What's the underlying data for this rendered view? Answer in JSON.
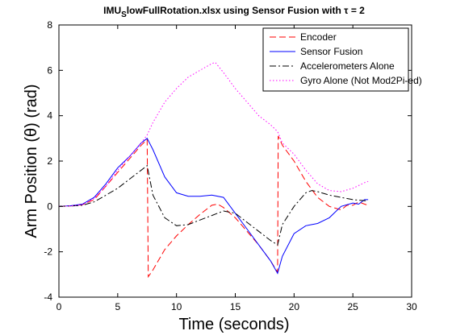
{
  "chart_data": {
    "type": "line",
    "title_main": "IMU",
    "title_sub": "S",
    "title_rest": "lowFullRotation.xlsx using Sensor Fusion with τ = 2",
    "xlabel": "Time (seconds)",
    "ylabel": "Arm Position (θ) (rad)",
    "xlim": [
      0,
      30
    ],
    "ylim": [
      -4,
      8
    ],
    "xticks": [
      0,
      5,
      10,
      15,
      20,
      25,
      30
    ],
    "yticks": [
      -4,
      -2,
      0,
      2,
      4,
      6,
      8
    ],
    "grid": false,
    "legend_position": "top-right",
    "series": [
      {
        "name": "Encoder",
        "color": "#ff0000",
        "dash": "8,4",
        "points": [
          [
            0,
            0
          ],
          [
            1,
            0.02
          ],
          [
            2,
            0.08
          ],
          [
            3,
            0.3
          ],
          [
            4,
            0.9
          ],
          [
            5,
            1.5
          ],
          [
            6,
            2.1
          ],
          [
            7,
            2.7
          ],
          [
            7.5,
            2.95
          ],
          [
            7.6,
            -3.1
          ],
          [
            8,
            -2.8
          ],
          [
            9,
            -1.9
          ],
          [
            10,
            -1.3
          ],
          [
            11,
            -0.8
          ],
          [
            12,
            -0.35
          ],
          [
            13,
            0.05
          ],
          [
            13.5,
            0.1
          ],
          [
            14,
            -0.05
          ],
          [
            15,
            -0.5
          ],
          [
            16,
            -1.1
          ],
          [
            17,
            -1.7
          ],
          [
            18,
            -2.4
          ],
          [
            18.6,
            -2.9
          ],
          [
            18.65,
            3.1
          ],
          [
            19,
            2.7
          ],
          [
            20,
            2.0
          ],
          [
            21,
            1.1
          ],
          [
            22,
            0.4
          ],
          [
            23,
            0.0
          ],
          [
            24,
            -0.15
          ],
          [
            24.5,
            0.05
          ],
          [
            25,
            0.05
          ],
          [
            25.5,
            0.2
          ],
          [
            26,
            0.1
          ],
          [
            26.3,
            0.05
          ]
        ]
      },
      {
        "name": "Sensor Fusion",
        "color": "#0000ff",
        "dash": "",
        "points": [
          [
            0,
            0
          ],
          [
            1,
            0.03
          ],
          [
            2,
            0.1
          ],
          [
            3,
            0.4
          ],
          [
            4,
            1.0
          ],
          [
            5,
            1.7
          ],
          [
            6,
            2.2
          ],
          [
            7,
            2.8
          ],
          [
            7.5,
            3.0
          ],
          [
            8,
            2.5
          ],
          [
            9,
            1.3
          ],
          [
            10,
            0.6
          ],
          [
            11,
            0.45
          ],
          [
            12,
            0.45
          ],
          [
            13,
            0.5
          ],
          [
            14,
            0.4
          ],
          [
            15,
            -0.3
          ],
          [
            16,
            -1.0
          ],
          [
            17,
            -1.7
          ],
          [
            18,
            -2.4
          ],
          [
            18.6,
            -2.95
          ],
          [
            19,
            -2.2
          ],
          [
            20,
            -1.2
          ],
          [
            21,
            -0.85
          ],
          [
            22,
            -0.75
          ],
          [
            23,
            -0.5
          ],
          [
            24,
            0.0
          ],
          [
            25,
            0.15
          ],
          [
            25.5,
            0.1
          ],
          [
            26,
            0.3
          ],
          [
            26.3,
            0.3
          ]
        ]
      },
      {
        "name": "Accelerometers Alone",
        "color": "#000000",
        "dash": "8,3,2,3",
        "points": [
          [
            0,
            0
          ],
          [
            1,
            0.02
          ],
          [
            2,
            0.05
          ],
          [
            3,
            0.2
          ],
          [
            4,
            0.5
          ],
          [
            5,
            0.8
          ],
          [
            6,
            1.2
          ],
          [
            7,
            1.6
          ],
          [
            7.5,
            1.8
          ],
          [
            8,
            0.5
          ],
          [
            9,
            -0.5
          ],
          [
            10,
            -0.85
          ],
          [
            11,
            -0.8
          ],
          [
            12,
            -0.6
          ],
          [
            13,
            -0.4
          ],
          [
            14,
            -0.2
          ],
          [
            15,
            -0.3
          ],
          [
            16,
            -0.7
          ],
          [
            17,
            -1.1
          ],
          [
            18,
            -1.5
          ],
          [
            18.6,
            -1.7
          ],
          [
            19,
            -0.8
          ],
          [
            20,
            0.0
          ],
          [
            21,
            0.6
          ],
          [
            21.5,
            0.7
          ],
          [
            22,
            0.65
          ],
          [
            23,
            0.5
          ],
          [
            24,
            0.4
          ],
          [
            25,
            0.3
          ],
          [
            26,
            0.25
          ],
          [
            26.3,
            0.25
          ]
        ]
      },
      {
        "name": "Gyro Alone (Not Mod2Pi-ed)",
        "color": "#ff00ff",
        "dash": "1.5,2.5",
        "points": [
          [
            0,
            0
          ],
          [
            1,
            0.02
          ],
          [
            2,
            0.08
          ],
          [
            3,
            0.35
          ],
          [
            4,
            0.9
          ],
          [
            5,
            1.6
          ],
          [
            6,
            2.2
          ],
          [
            7,
            2.8
          ],
          [
            7.5,
            3.15
          ],
          [
            8,
            3.7
          ],
          [
            9,
            4.6
          ],
          [
            10,
            5.2
          ],
          [
            11,
            5.7
          ],
          [
            12,
            6.0
          ],
          [
            13,
            6.3
          ],
          [
            13.3,
            6.35
          ],
          [
            14,
            5.9
          ],
          [
            15,
            5.2
          ],
          [
            16,
            4.6
          ],
          [
            17,
            4.0
          ],
          [
            18,
            3.6
          ],
          [
            18.6,
            3.3
          ],
          [
            19,
            2.8
          ],
          [
            20,
            2.3
          ],
          [
            21,
            1.6
          ],
          [
            22,
            1.0
          ],
          [
            23,
            0.7
          ],
          [
            24,
            0.65
          ],
          [
            25,
            0.8
          ],
          [
            26,
            1.05
          ],
          [
            26.3,
            1.1
          ]
        ]
      }
    ]
  }
}
